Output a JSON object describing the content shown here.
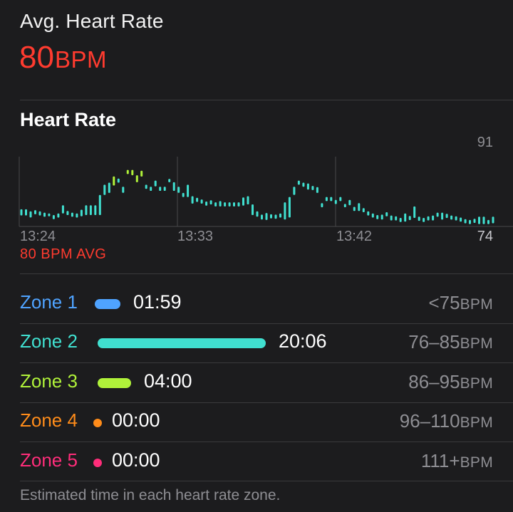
{
  "summary": {
    "label": "Avg. Heart Rate",
    "value": "80",
    "unit": "BPM"
  },
  "chart_section": {
    "title": "Heart Rate",
    "avg_note": "80 BPM AVG"
  },
  "chart_data": {
    "type": "bar",
    "title": "Heart Rate",
    "x_tick_labels": [
      "13:24",
      "13:33",
      "13:42"
    ],
    "y_max_label": "91",
    "y_min_label": "74",
    "ylim": [
      74,
      91
    ],
    "colors": {
      "zone2": "#40e0d0",
      "zone3": "#b0f23a",
      "axis": "#48484a",
      "tick_text": "#8e8e93"
    },
    "series": [
      {
        "values": [
          [
            76.5,
            78
          ],
          [
            76.5,
            78
          ],
          [
            76,
            77.5
          ],
          [
            76.8,
            77.8
          ],
          [
            76.5,
            77.5
          ],
          [
            76.2,
            77.2
          ],
          [
            76.3,
            77
          ],
          [
            75.6,
            76.6
          ],
          [
            76,
            77
          ],
          [
            77,
            79
          ],
          [
            76.6,
            77.6
          ],
          [
            76.2,
            77.2
          ],
          [
            76,
            77
          ],
          [
            76.3,
            77.9
          ],
          [
            76.6,
            79
          ],
          [
            76.6,
            79
          ],
          [
            76.6,
            79
          ],
          [
            76.6,
            81.5
          ],
          [
            81.5,
            84
          ],
          [
            82,
            84.5
          ],
          [
            83.8,
            86
          ],
          [
            84.5,
            85.5
          ],
          [
            82,
            83.5
          ],
          [
            86.6,
            87.6
          ],
          [
            86.3,
            87.6
          ],
          [
            84.6,
            86.3
          ],
          [
            86,
            87.4
          ],
          [
            83,
            84
          ],
          [
            82.5,
            83.5
          ],
          [
            83.6,
            85
          ],
          [
            82.5,
            83.5
          ],
          [
            82.5,
            83.5
          ],
          [
            84.6,
            85.4
          ],
          [
            82.5,
            84.6
          ],
          [
            82,
            83.5
          ],
          [
            81,
            82
          ],
          [
            81,
            84
          ],
          [
            79.4,
            81.2
          ],
          [
            79.8,
            80.8
          ],
          [
            79.4,
            80.4
          ],
          [
            78.9,
            79.9
          ],
          [
            79.2,
            80.2
          ],
          [
            78.7,
            79.7
          ],
          [
            78.7,
            80
          ],
          [
            78.7,
            79.7
          ],
          [
            78.7,
            79.7
          ],
          [
            78.7,
            79.7
          ],
          [
            78.7,
            79.7
          ],
          [
            78.9,
            80.9
          ],
          [
            79.2,
            81.2
          ],
          [
            76.6,
            79.2
          ],
          [
            76.2,
            77.5
          ],
          [
            75.5,
            76.7
          ],
          [
            75.4,
            77.1
          ],
          [
            75.8,
            76.8
          ],
          [
            75.7,
            76.7
          ],
          [
            76,
            77
          ],
          [
            75.5,
            79.7
          ],
          [
            76,
            81
          ],
          [
            81.5,
            83.5
          ],
          [
            84,
            85
          ],
          [
            83.5,
            84.5
          ],
          [
            82.8,
            84.3
          ],
          [
            82.7,
            83.7
          ],
          [
            82,
            83.4
          ],
          [
            78.5,
            79.5
          ],
          [
            80,
            81
          ],
          [
            80,
            81
          ],
          [
            79.3,
            80.3
          ],
          [
            80,
            81
          ],
          [
            78.5,
            79.3
          ],
          [
            79,
            80.3
          ],
          [
            77.6,
            78.6
          ],
          [
            77.6,
            79.5
          ],
          [
            77.3,
            78.3
          ],
          [
            76.5,
            77.5
          ],
          [
            76,
            77
          ],
          [
            75.6,
            76.6
          ],
          [
            75.5,
            76.7
          ],
          [
            76.3,
            77.3
          ],
          [
            75.3,
            76.5
          ],
          [
            75.3,
            76.3
          ],
          [
            74.9,
            75.9
          ],
          [
            75,
            77
          ],
          [
            75.4,
            76.4
          ],
          [
            75.9,
            78.7
          ],
          [
            75.2,
            76.2
          ],
          [
            74.9,
            75.9
          ],
          [
            75.3,
            76.3
          ],
          [
            75.3,
            76.5
          ],
          [
            76.2,
            77.2
          ],
          [
            75.5,
            77.2
          ],
          [
            75.9,
            76.9
          ],
          [
            75.5,
            76.5
          ],
          [
            75.3,
            76.3
          ],
          [
            75,
            76
          ],
          [
            74.6,
            75.6
          ],
          [
            74.4,
            75.4
          ],
          [
            74.7,
            75.7
          ],
          [
            74.4,
            76.2
          ],
          [
            74.4,
            76.2
          ],
          [
            74.4,
            75.4
          ],
          [
            74.6,
            76.2
          ]
        ]
      }
    ]
  },
  "zones_list": [
    {
      "name": "Zone 1",
      "time": "01:59",
      "range": "<75",
      "unit": "BPM",
      "seconds": 119,
      "color": "#4fa3ff",
      "name_color": "#4fa3ff"
    },
    {
      "name": "Zone 2",
      "time": "20:06",
      "range": "76–85",
      "unit": "BPM",
      "seconds": 1206,
      "color": "#40e0d0",
      "name_color": "#40e0d0"
    },
    {
      "name": "Zone 3",
      "time": "04:00",
      "range": "86–95",
      "unit": "BPM",
      "seconds": 240,
      "color": "#b0f23a",
      "name_color": "#b0f23a"
    },
    {
      "name": "Zone 4",
      "time": "00:00",
      "range": "96–110",
      "unit": "BPM",
      "seconds": 0,
      "color": "#ff8c1a",
      "name_color": "#ff8c1a"
    },
    {
      "name": "Zone 5",
      "time": "00:00",
      "range": "111+",
      "unit": "BPM",
      "seconds": 0,
      "color": "#ff2d7a",
      "name_color": "#ff2d7a"
    }
  ],
  "footnote": "Estimated time in each heart rate zone."
}
